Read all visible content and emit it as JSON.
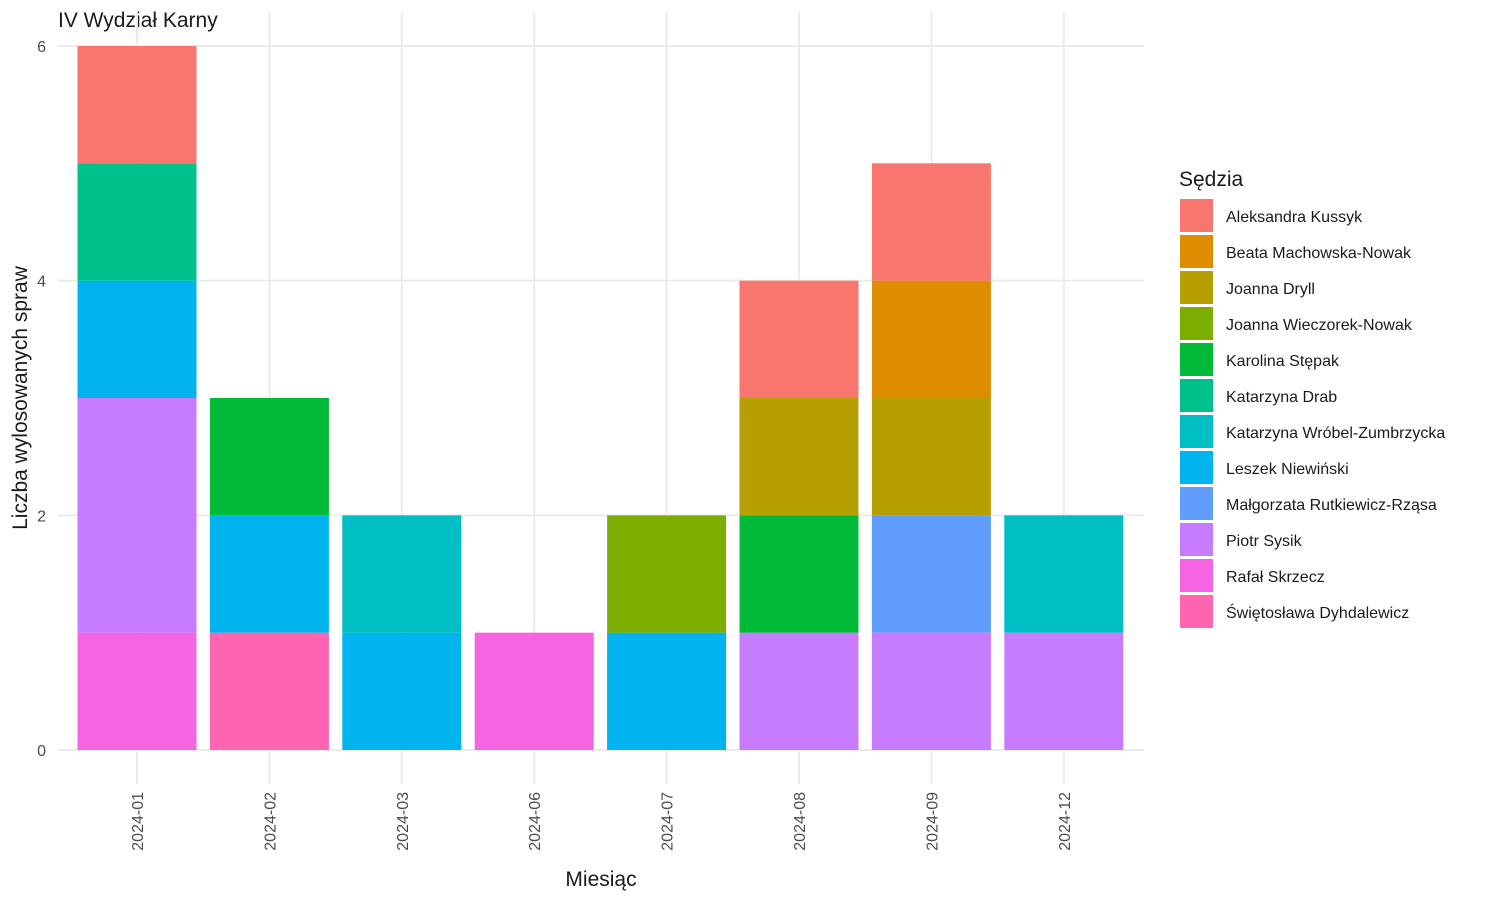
{
  "chart_data": {
    "type": "bar",
    "stacked": true,
    "title": "IV Wydział Karny",
    "xlabel": "Miesiąc",
    "ylabel": "Liczba wylosowanych spraw",
    "ylim": [
      0,
      6
    ],
    "y_ticks": [
      0,
      2,
      4,
      6
    ],
    "grid": true,
    "legend_position": "right",
    "categories": [
      "2024-01",
      "2024-02",
      "2024-03",
      "2024-06",
      "2024-07",
      "2024-08",
      "2024-09",
      "2024-12"
    ],
    "legend_title": "Sędzia",
    "series": [
      {
        "name": "Aleksandra Kussyk",
        "color": "#F8766D",
        "values": [
          1,
          0,
          0,
          0,
          0,
          1,
          1,
          0
        ]
      },
      {
        "name": "Beata Machowska-Nowak",
        "color": "#DE8C00",
        "values": [
          0,
          0,
          0,
          0,
          0,
          0,
          1,
          0
        ]
      },
      {
        "name": "Joanna Dryll",
        "color": "#B79F00",
        "values": [
          0,
          0,
          0,
          0,
          0,
          1,
          1,
          0
        ]
      },
      {
        "name": "Joanna Wieczorek-Nowak",
        "color": "#7CAE00",
        "values": [
          0,
          0,
          0,
          0,
          1,
          0,
          0,
          0
        ]
      },
      {
        "name": "Karolina Stępak",
        "color": "#00BA38",
        "values": [
          0,
          1,
          0,
          0,
          0,
          1,
          0,
          0
        ]
      },
      {
        "name": "Katarzyna Drab",
        "color": "#00C08B",
        "values": [
          1,
          0,
          0,
          0,
          0,
          0,
          0,
          0
        ]
      },
      {
        "name": "Katarzyna Wróbel-Zumbrzycka",
        "color": "#00BFC4",
        "values": [
          0,
          0,
          1,
          0,
          0,
          0,
          0,
          1
        ]
      },
      {
        "name": "Leszek Niewiński",
        "color": "#00B4F0",
        "values": [
          1,
          1,
          1,
          0,
          1,
          0,
          0,
          0
        ]
      },
      {
        "name": "Małgorzata Rutkiewicz-Rząsa",
        "color": "#619CFF",
        "values": [
          0,
          0,
          0,
          0,
          0,
          0,
          1,
          0
        ]
      },
      {
        "name": "Piotr Sysik",
        "color": "#C77CFF",
        "values": [
          2,
          0,
          0,
          0,
          0,
          1,
          1,
          1
        ]
      },
      {
        "name": "Rafał Skrzecz",
        "color": "#F564E3",
        "values": [
          1,
          0,
          0,
          1,
          0,
          0,
          0,
          0
        ]
      },
      {
        "name": "Świętosława Dyhdalewicz",
        "color": "#FF64B0",
        "values": [
          0,
          1,
          0,
          0,
          0,
          0,
          0,
          0
        ]
      }
    ]
  }
}
